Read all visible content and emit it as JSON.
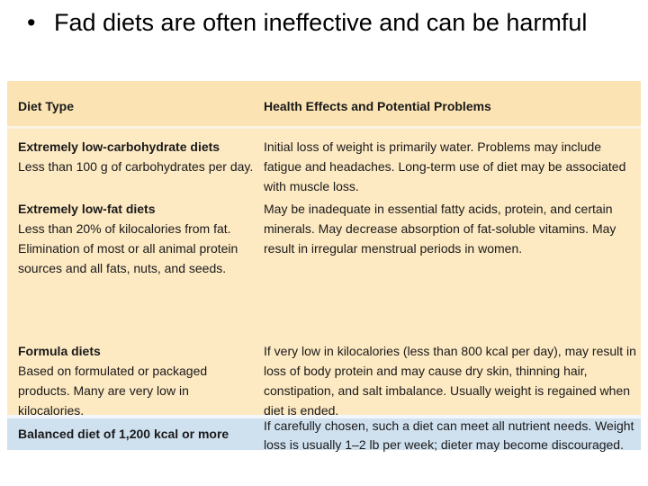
{
  "slide": {
    "bullet_mark": "•",
    "bullet_text": "Fad diets are often ineffective and can be harmful"
  },
  "table": {
    "headers": [
      "Diet Type",
      "Health Effects and Potential Problems"
    ],
    "rows": [
      {
        "title": "Extremely low-carbohydrate diets",
        "desc": "Less than 100 g of carbohydrates per day.",
        "effects": "Initial loss of weight is primarily water. Problems may include fatigue and headaches. Long-term use of diet may be associated with muscle loss."
      },
      {
        "title": "Extremely low-fat diets",
        "desc": "Less than 20% of kilocalories from fat. Elimination of most or all animal protein sources and all fats, nuts, and seeds.",
        "effects": "May be inadequate in essential fatty acids, protein, and certain minerals. May decrease absorption of fat-soluble vitamins. May result in irregular menstrual periods in women."
      },
      {
        "title": "Formula diets",
        "desc": "Based on formulated or packaged products. Many are very low in kilocalories.",
        "effects": "If very low in kilocalories (less than 800 kcal per day), may result in loss of body protein and may cause dry skin, thinning hair, constipation, and salt imbalance. Usually weight is regained when diet is ended."
      },
      {
        "title": "Balanced diet of 1,200 kcal or more",
        "desc": "",
        "effects": "If carefully chosen, such a diet can meet all nutrient needs. Weight loss is usually 1–2 lb per week; dieter may become discouraged."
      }
    ]
  },
  "colors": {
    "header_bg": "#fbe3b3",
    "body_bg": "#fde9c2",
    "last_row_bg": "#cfe0ef"
  }
}
